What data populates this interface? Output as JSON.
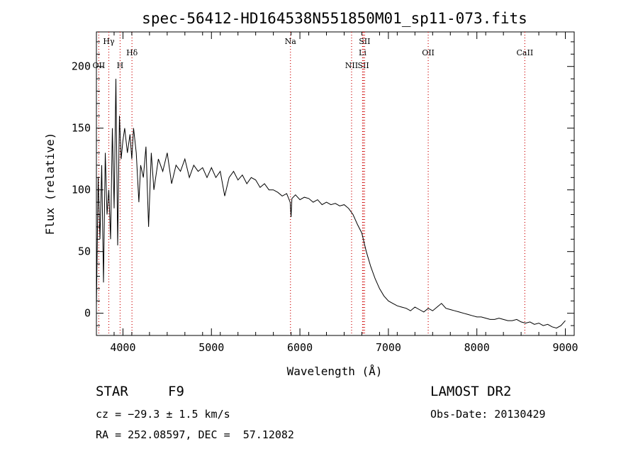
{
  "chart_data": {
    "type": "line",
    "title": "spec-56412-HD164538N551850M01_sp11-073.fits",
    "xlabel": "Wavelength (Å)",
    "ylabel": "Flux (relative)",
    "xlim": [
      3700,
      9100
    ],
    "ylim": [
      -18,
      228
    ],
    "xticks": [
      4000,
      5000,
      6000,
      7000,
      8000,
      9000
    ],
    "yticks": [
      0,
      50,
      100,
      150,
      200
    ],
    "grid": false,
    "line_color": "#000000",
    "marker_color": "#cc0000",
    "series": [
      {
        "x": [
          3700,
          3720,
          3740,
          3760,
          3780,
          3800,
          3820,
          3840,
          3860,
          3880,
          3900,
          3920,
          3940,
          3960,
          3980,
          4000,
          4020,
          4050,
          4080,
          4100,
          4120,
          4150,
          4180,
          4200,
          4230,
          4260,
          4290,
          4320,
          4350,
          4400,
          4450,
          4500,
          4550,
          4600,
          4650,
          4700,
          4750,
          4800,
          4850,
          4900,
          4950,
          5000,
          5050,
          5100,
          5150,
          5200,
          5250,
          5300,
          5350,
          5400,
          5450,
          5500,
          5550,
          5600,
          5650,
          5700,
          5750,
          5800,
          5850,
          5890,
          5900,
          5910,
          5950,
          6000,
          6050,
          6100,
          6150,
          6200,
          6250,
          6300,
          6350,
          6400,
          6450,
          6500,
          6550,
          6600,
          6650,
          6700,
          6750,
          6800,
          6850,
          6900,
          6950,
          7000,
          7050,
          7100,
          7150,
          7200,
          7250,
          7300,
          7350,
          7400,
          7450,
          7500,
          7550,
          7600,
          7650,
          7700,
          7750,
          7800,
          7850,
          7900,
          7950,
          8000,
          8050,
          8100,
          8150,
          8200,
          8250,
          8300,
          8350,
          8400,
          8450,
          8500,
          8550,
          8600,
          8650,
          8700,
          8750,
          8800,
          8850,
          8900,
          8950,
          9000
        ],
        "y": [
          5,
          110,
          60,
          120,
          25,
          130,
          80,
          100,
          60,
          150,
          85,
          190,
          55,
          160,
          125,
          140,
          150,
          130,
          145,
          125,
          150,
          130,
          90,
          120,
          110,
          135,
          70,
          130,
          100,
          125,
          115,
          130,
          105,
          120,
          115,
          125,
          110,
          120,
          115,
          118,
          110,
          118,
          110,
          115,
          95,
          110,
          115,
          108,
          112,
          105,
          110,
          108,
          102,
          105,
          100,
          100,
          98,
          95,
          97,
          90,
          78,
          93,
          96,
          92,
          94,
          93,
          90,
          92,
          88,
          90,
          88,
          89,
          87,
          88,
          85,
          80,
          72,
          65,
          50,
          38,
          28,
          20,
          14,
          10,
          8,
          6,
          5,
          4,
          2,
          5,
          3,
          1,
          4,
          2,
          5,
          8,
          4,
          3,
          2,
          1,
          0,
          -1,
          -2,
          -3,
          -3,
          -4,
          -5,
          -5,
          -4,
          -5,
          -6,
          -6,
          -5,
          -7,
          -8,
          -7,
          -9,
          -8,
          -10,
          -9,
          -11,
          -12,
          -10,
          -6
        ]
      }
    ],
    "lines": [
      {
        "label": "OII",
        "x": 3727,
        "tier": 2
      },
      {
        "label": "Hγ",
        "x": 3840,
        "tier": 0
      },
      {
        "label": "H",
        "x": 3968,
        "tier": 2
      },
      {
        "label": "Hδ",
        "x": 4102,
        "tier": 1
      },
      {
        "label": "Na",
        "x": 5893,
        "tier": 0
      },
      {
        "label": "NII",
        "x": 6584,
        "tier": 2
      },
      {
        "label": "SII",
        "x": 6717,
        "tier": 2
      },
      {
        "label": "Li",
        "x": 6708,
        "tier": 1
      },
      {
        "label": "SII",
        "x": 6731,
        "tier": 0
      },
      {
        "label": "OII",
        "x": 7450,
        "tier": 1
      },
      {
        "label": "CaII",
        "x": 8542,
        "tier": 1
      }
    ]
  },
  "info": {
    "obj_class": "STAR",
    "obj_subclass": "F9",
    "survey": "LAMOST DR2",
    "cz": "cz = −29.3 ± 1.5 km/s",
    "obs_date": "Obs-Date: 20130429",
    "radec": "RA = 252.08597, DEC =  57.12082"
  }
}
